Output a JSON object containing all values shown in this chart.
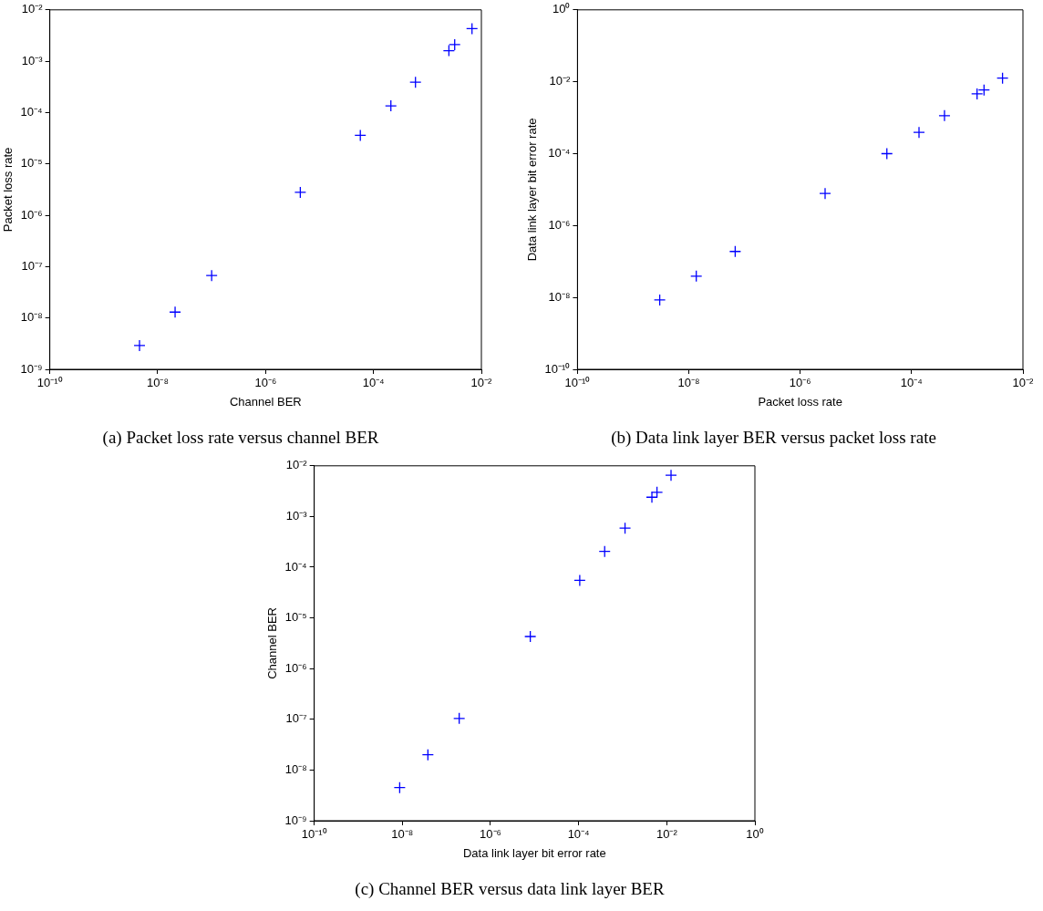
{
  "chart_data": [
    {
      "type": "scatter",
      "title": "(a) Packet loss rate versus channel BER",
      "xlabel": "Channel BER",
      "ylabel": "Packet loss rate",
      "log": "xy",
      "grid": false,
      "legend": false,
      "marker": "cross",
      "xlim": [
        1e-10,
        0.01
      ],
      "ylim": [
        1e-09,
        0.01
      ],
      "xticks": [
        {
          "value": 1e-10,
          "label": "10⁻¹⁰"
        },
        {
          "value": 1e-08,
          "label": "10⁻⁸"
        },
        {
          "value": 1e-06,
          "label": "10⁻⁶"
        },
        {
          "value": 0.0001,
          "label": "10⁻⁴"
        },
        {
          "value": 0.01,
          "label": "10⁻²"
        }
      ],
      "yticks": [
        {
          "value": 1e-09,
          "label": "10⁻⁹"
        },
        {
          "value": 1e-08,
          "label": "10⁻⁸"
        },
        {
          "value": 1e-07,
          "label": "10⁻⁷"
        },
        {
          "value": 1e-06,
          "label": "10⁻⁶"
        },
        {
          "value": 1e-05,
          "label": "10⁻⁵"
        },
        {
          "value": 0.0001,
          "label": "10⁻⁴"
        },
        {
          "value": 0.001,
          "label": "10⁻³"
        },
        {
          "value": 0.01,
          "label": "10⁻²"
        }
      ],
      "series": [
        {
          "color": "#0000ff",
          "x": [
            4.6e-09,
            2.1e-08,
            1e-07,
            4.4e-06,
            5.7e-05,
            0.00021,
            0.0006,
            0.0025,
            0.0032,
            0.0067
          ],
          "values": [
            2.9e-09,
            1.3e-08,
            6.7e-08,
            2.8e-06,
            3.6e-05,
            0.000135,
            0.00039,
            0.0016,
            0.0021,
            0.0043
          ]
        }
      ]
    },
    {
      "type": "scatter",
      "title": "(b) Data link layer BER versus packet loss rate",
      "xlabel": "Packet loss rate",
      "ylabel": "Data link layer bit error rate",
      "log": "xy",
      "grid": false,
      "legend": false,
      "marker": "cross",
      "xlim": [
        1e-10,
        0.01
      ],
      "ylim": [
        1e-10,
        1
      ],
      "xticks": [
        {
          "value": 1e-10,
          "label": "10⁻¹⁰"
        },
        {
          "value": 1e-08,
          "label": "10⁻⁸"
        },
        {
          "value": 1e-06,
          "label": "10⁻⁶"
        },
        {
          "value": 0.0001,
          "label": "10⁻⁴"
        },
        {
          "value": 0.01,
          "label": "10⁻²"
        }
      ],
      "yticks": [
        {
          "value": 1e-10,
          "label": "10⁻¹⁰"
        },
        {
          "value": 1e-08,
          "label": "10⁻⁸"
        },
        {
          "value": 1e-06,
          "label": "10⁻⁶"
        },
        {
          "value": 0.0001,
          "label": "10⁻⁴"
        },
        {
          "value": 0.01,
          "label": "10⁻²"
        },
        {
          "value": 1,
          "label": "10⁰"
        }
      ],
      "series": [
        {
          "color": "#0000ff",
          "x": [
            3e-09,
            1.36e-08,
            6.8e-08,
            2.8e-06,
            3.6e-05,
            0.000136,
            0.00039,
            0.0015,
            0.002,
            0.0043
          ],
          "values": [
            8.5e-09,
            3.9e-08,
            1.9e-07,
            7.8e-06,
            0.0001,
            0.00039,
            0.00114,
            0.0046,
            0.0059,
            0.0126
          ]
        }
      ]
    },
    {
      "type": "scatter",
      "title": "(c) Channel BER versus data link layer BER",
      "xlabel": "Data link layer bit error rate",
      "ylabel": "Channel BER",
      "log": "xy",
      "grid": false,
      "legend": false,
      "marker": "cross",
      "xlim": [
        1e-10,
        1
      ],
      "ylim": [
        1e-09,
        0.01
      ],
      "xticks": [
        {
          "value": 1e-10,
          "label": "10⁻¹⁰"
        },
        {
          "value": 1e-08,
          "label": "10⁻⁸"
        },
        {
          "value": 1e-06,
          "label": "10⁻⁶"
        },
        {
          "value": 0.0001,
          "label": "10⁻⁴"
        },
        {
          "value": 0.01,
          "label": "10⁻²"
        },
        {
          "value": 1,
          "label": "10⁰"
        }
      ],
      "yticks": [
        {
          "value": 1e-09,
          "label": "10⁻⁹"
        },
        {
          "value": 1e-08,
          "label": "10⁻⁸"
        },
        {
          "value": 1e-07,
          "label": "10⁻⁷"
        },
        {
          "value": 1e-06,
          "label": "10⁻⁶"
        },
        {
          "value": 1e-05,
          "label": "10⁻⁵"
        },
        {
          "value": 0.0001,
          "label": "10⁻⁴"
        },
        {
          "value": 0.001,
          "label": "10⁻³"
        },
        {
          "value": 0.01,
          "label": "10⁻²"
        }
      ],
      "series": [
        {
          "color": "#0000ff",
          "x": [
            8.7e-09,
            3.8e-08,
            1.95e-07,
            8e-06,
            0.000106,
            0.00039,
            0.00113,
            0.0046,
            0.006,
            0.0125
          ],
          "values": [
            4.5e-09,
            2e-08,
            1.04e-07,
            4.3e-06,
            5.5e-05,
            0.000205,
            0.00059,
            0.0024,
            0.003,
            0.0065
          ]
        }
      ]
    }
  ]
}
